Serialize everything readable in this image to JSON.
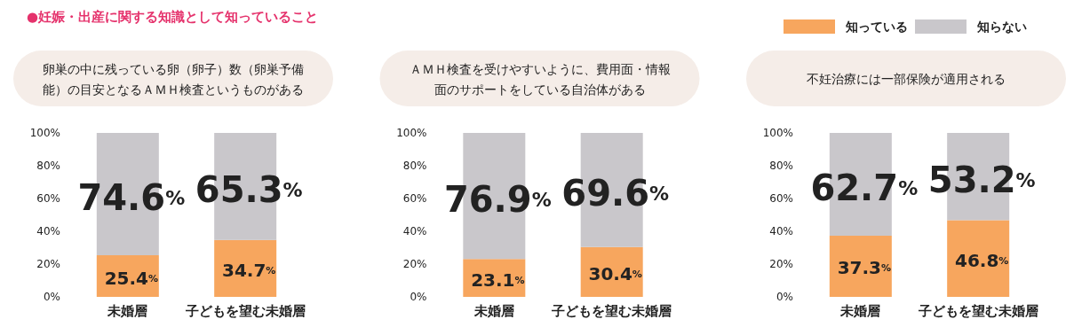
{
  "chart_data": [
    {
      "type": "bar",
      "title": "●妊娠・出産に関する知識として知っていること",
      "subtitle": "卵巣の中に残っている卵（卵子）数（卵巣予備能）の目安となるＡＭＨ検査というものがある",
      "categories": [
        "未婚層",
        "子どもを望む未婚層"
      ],
      "stacked": true,
      "ylim": [
        0,
        100
      ],
      "yticks": [
        {
          "value": 0,
          "label": "0%"
        },
        {
          "value": 20,
          "label": "20%"
        },
        {
          "value": 40,
          "label": "40%"
        },
        {
          "value": 60,
          "label": "60%"
        },
        {
          "value": 80,
          "label": "80%"
        },
        {
          "value": 100,
          "label": "100%"
        }
      ],
      "series": [
        {
          "color": "#f7a65e",
          "values": [
            25.4,
            34.7
          ],
          "value_labels": [
            "25.4%",
            "34.7%"
          ]
        },
        {
          "color": "#c9c7cb",
          "values": [
            74.6,
            65.3
          ],
          "value_labels": [
            "74.6%",
            "65.3%"
          ]
        }
      ]
    },
    {
      "type": "bar",
      "subtitle": "ＡＭＨ検査を受けやすいように、費用面・情報面のサポートをしている自治体がある",
      "categories": [
        "未婚層",
        "子どもを望む未婚層"
      ],
      "stacked": true,
      "ylim": [
        0,
        100
      ],
      "yticks": [
        {
          "value": 0,
          "label": "0%"
        },
        {
          "value": 20,
          "label": "20%"
        },
        {
          "value": 40,
          "label": "40%"
        },
        {
          "value": 60,
          "label": "60%"
        },
        {
          "value": 80,
          "label": "80%"
        },
        {
          "value": 100,
          "label": "100%"
        }
      ],
      "series": [
        {
          "color": "#f7a65e",
          "values": [
            23.1,
            30.4
          ],
          "value_labels": [
            "23.1%",
            "30.4%"
          ]
        },
        {
          "color": "#c9c7cb",
          "values": [
            76.9,
            69.6
          ],
          "value_labels": [
            "76.9%",
            "69.6%"
          ]
        }
      ]
    },
    {
      "type": "bar",
      "subtitle": "不妊治療には一部保険が適用される",
      "categories": [
        "未婚層",
        "子どもを望む未婚層"
      ],
      "stacked": true,
      "legend": "top",
      "ylim": [
        0,
        100
      ],
      "yticks": [
        {
          "value": 0,
          "label": "0%"
        },
        {
          "value": 20,
          "label": "20%"
        },
        {
          "value": 40,
          "label": "40%"
        },
        {
          "value": 60,
          "label": "60%"
        },
        {
          "value": 80,
          "label": "80%"
        },
        {
          "value": 100,
          "label": "100%"
        }
      ],
      "series": [
        {
          "name": "知っている",
          "color": "#f7a65e",
          "values": [
            37.3,
            46.8
          ],
          "value_labels": [
            "37.3%",
            "46.8%"
          ]
        },
        {
          "name": "知らない",
          "color": "#c9c7cb",
          "values": [
            62.7,
            53.2
          ],
          "value_labels": [
            "62.7%",
            "53.2%"
          ]
        }
      ]
    }
  ]
}
